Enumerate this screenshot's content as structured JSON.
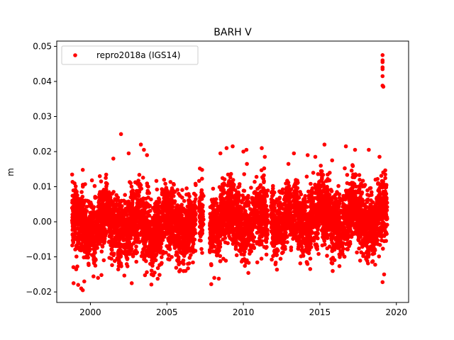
{
  "chart_data": {
    "type": "scatter",
    "title": "BARH V",
    "xlabel": "",
    "ylabel": "m",
    "xlim": [
      1997.8,
      2020.8
    ],
    "ylim": [
      -0.023,
      0.0515
    ],
    "xticks": [
      2000,
      2005,
      2010,
      2015,
      2020
    ],
    "yticks": [
      -0.02,
      -0.01,
      0.0,
      0.01,
      0.02,
      0.03,
      0.04,
      0.05
    ],
    "ytick_labels": [
      "−0.02",
      "−0.01",
      "0.00",
      "0.01",
      "0.02",
      "0.03",
      "0.04",
      "0.05"
    ],
    "grid": false,
    "legend_position": "upper-left",
    "series": [
      {
        "name": "repro2018a (IGS14)",
        "color": "#ff0000",
        "marker": "circle",
        "segments": [
          {
            "start": 1998.8,
            "end": 2006.9,
            "mean": -0.001,
            "sd": 0.0045
          },
          {
            "start": 2007.1,
            "end": 2007.4,
            "mean": 0.001,
            "sd": 0.0045
          },
          {
            "start": 2007.8,
            "end": 2011.6,
            "mean": 0.0005,
            "sd": 0.0045
          },
          {
            "start": 2011.8,
            "end": 2019.4,
            "mean": 0.001,
            "sd": 0.0045
          }
        ],
        "points": [
          [
            1998.9,
            -0.0175
          ],
          [
            1999.2,
            -0.018
          ],
          [
            1999.4,
            -0.019
          ],
          [
            1999.5,
            -0.0195
          ],
          [
            1999.6,
            -0.017
          ],
          [
            2000.5,
            -0.016
          ],
          [
            2002.7,
            -0.0175
          ],
          [
            2004.0,
            -0.015
          ],
          [
            2004.2,
            -0.0145
          ],
          [
            2007.9,
            -0.0178
          ],
          [
            2008.1,
            -0.016
          ],
          [
            1999.5,
            0.0148
          ],
          [
            2000.1,
            0.0118
          ],
          [
            2000.7,
            0.0115
          ],
          [
            2001.5,
            0.018
          ],
          [
            2002.0,
            0.025
          ],
          [
            2002.5,
            0.0195
          ],
          [
            2003.3,
            0.022
          ],
          [
            2003.5,
            0.0205
          ],
          [
            2003.7,
            0.019
          ],
          [
            2007.3,
            0.0148
          ],
          [
            2008.5,
            0.0195
          ],
          [
            2008.9,
            0.021
          ],
          [
            2009.3,
            0.0215
          ],
          [
            2010.0,
            0.02
          ],
          [
            2010.2,
            0.0205
          ],
          [
            2011.2,
            0.021
          ],
          [
            2011.4,
            0.0185
          ],
          [
            2013.3,
            0.0195
          ],
          [
            2014.2,
            0.019
          ],
          [
            2014.7,
            0.0185
          ],
          [
            2015.3,
            0.022
          ],
          [
            2015.8,
            0.0175
          ],
          [
            2016.7,
            0.0215
          ],
          [
            2017.3,
            0.0205
          ],
          [
            2018.2,
            0.0205
          ],
          [
            2018.9,
            0.0185
          ],
          [
            2019.1,
            0.0475
          ],
          [
            2019.1,
            0.046
          ],
          [
            2019.1,
            0.0455
          ],
          [
            2019.1,
            0.044
          ],
          [
            2019.1,
            0.0415
          ],
          [
            2019.1,
            0.0388
          ],
          [
            2019.15,
            0.0385
          ],
          [
            2019.1,
            0.0435
          ],
          [
            2019.1,
            -0.0172
          ],
          [
            2019.2,
            -0.015
          ]
        ]
      }
    ]
  }
}
